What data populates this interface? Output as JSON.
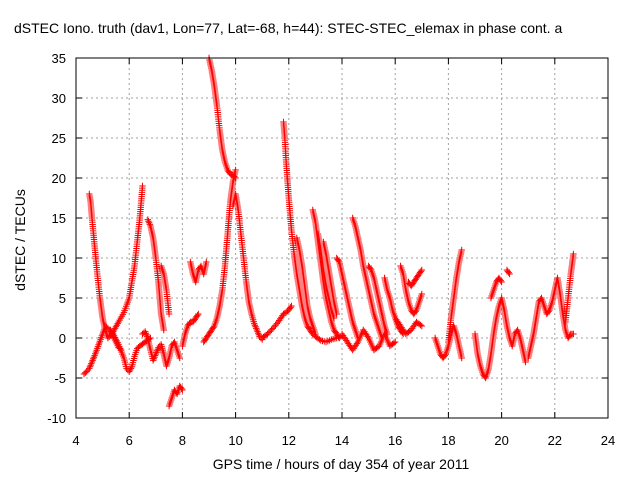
{
  "chart_data": {
    "type": "scatter",
    "title": "dSTEC Iono. truth (dav1, Lon=77, Lat=-68, h=44): STEC-STEC_elemax in phase cont. a",
    "xlabel": "GPS time / hours of day 354 of year 2011",
    "ylabel": "dSTEC  / TECUs",
    "xlim": [
      4,
      24
    ],
    "ylim": [
      -10,
      35
    ],
    "xticks": [
      4,
      6,
      8,
      10,
      12,
      14,
      16,
      18,
      20,
      22,
      24
    ],
    "yticks": [
      -10,
      -5,
      0,
      5,
      10,
      15,
      20,
      25,
      30,
      35
    ],
    "grid": true,
    "marker": "plus",
    "color": "#ff0000",
    "series": [
      {
        "x": [
          4.3,
          4.4,
          4.5,
          4.6,
          4.7,
          4.8,
          4.9,
          5.0,
          5.1,
          5.2,
          5.4,
          5.6,
          5.8,
          5.9,
          6.0,
          6.1,
          6.2,
          6.3,
          6.4,
          6.6,
          6.8
        ],
        "y": [
          -4.5,
          -4.2,
          -3.8,
          -3.0,
          -2.2,
          -1.3,
          -0.4,
          0.5,
          1.5,
          1.2,
          0.5,
          -0.8,
          -2.5,
          -3.8,
          -4.2,
          -3.6,
          -2.3,
          -1.3,
          -1.0,
          -0.5,
          0.0
        ]
      },
      {
        "x": [
          4.5,
          4.55,
          4.6,
          4.7,
          4.8,
          4.9,
          5.0,
          5.1,
          5.2,
          5.3,
          5.4,
          5.5,
          5.6,
          5.8,
          6.0,
          6.2,
          6.4,
          6.5
        ],
        "y": [
          18.0,
          17.0,
          15.0,
          11.5,
          8.0,
          5.0,
          2.5,
          1.0,
          0.0,
          0.3,
          0.8,
          1.4,
          2.0,
          3.2,
          5.0,
          9.0,
          15.0,
          19.0
        ]
      },
      {
        "x": [
          5.3,
          5.4,
          5.5,
          5.6,
          5.7
        ],
        "y": [
          1.0,
          0.2,
          -0.5,
          -1.2,
          -1.5
        ]
      },
      {
        "x": [
          6.5,
          6.6,
          6.7,
          6.8,
          6.9,
          7.0,
          7.1,
          7.2,
          7.3,
          7.4,
          7.5,
          7.6,
          7.7,
          7.8,
          7.9
        ],
        "y": [
          0.5,
          0.8,
          0.0,
          -1.5,
          -2.8,
          -2.0,
          -1.2,
          -0.8,
          -2.0,
          -3.5,
          -2.5,
          -1.0,
          -0.5,
          -1.5,
          -2.5
        ]
      },
      {
        "x": [
          6.7,
          6.8,
          6.9,
          7.0,
          7.1,
          7.15,
          7.2,
          7.3
        ],
        "y": [
          14.8,
          14.0,
          12.5,
          10.0,
          7.0,
          5.0,
          3.0,
          1.0
        ]
      },
      {
        "x": [
          7.2,
          7.3,
          7.4,
          7.5
        ],
        "y": [
          9.0,
          8.0,
          6.0,
          3.0
        ]
      },
      {
        "x": [
          7.5,
          7.6,
          7.7,
          7.8,
          7.9,
          8.0
        ],
        "y": [
          -8.5,
          -7.5,
          -6.5,
          -7.0,
          -6.0,
          -6.5
        ]
      },
      {
        "x": [
          8.0,
          8.1,
          8.2,
          8.3,
          8.4,
          8.5,
          8.6
        ],
        "y": [
          -1.0,
          0.5,
          1.5,
          2.0,
          2.0,
          2.5,
          3.0
        ]
      },
      {
        "x": [
          8.3,
          8.4,
          8.5,
          8.6,
          8.7,
          8.8,
          8.9
        ],
        "y": [
          9.5,
          8.0,
          7.0,
          8.5,
          9.0,
          8.0,
          9.5
        ]
      },
      {
        "x": [
          8.8,
          8.9,
          9.0,
          9.1,
          9.2,
          9.3,
          9.4,
          9.5,
          9.6,
          9.7,
          9.8,
          9.9,
          10.0
        ],
        "y": [
          -0.5,
          0.0,
          0.5,
          1.0,
          1.5,
          2.5,
          4.0,
          6.0,
          9.0,
          13.0,
          17.0,
          19.5,
          21.0
        ]
      },
      {
        "x": [
          9.0,
          9.1,
          9.2,
          9.3,
          9.4,
          9.5,
          9.6,
          9.7,
          9.8,
          9.9,
          10.0
        ],
        "y": [
          35.0,
          33.5,
          31.5,
          29.0,
          26.0,
          23.5,
          22.0,
          21.0,
          20.5,
          20.3,
          20.0
        ]
      },
      {
        "x": [
          9.9,
          10.0,
          10.1,
          10.2,
          10.3,
          10.4,
          10.5,
          10.6,
          10.7,
          10.8,
          10.9,
          11.0
        ],
        "y": [
          16.5,
          18.0,
          16.0,
          13.0,
          10.0,
          7.0,
          4.5,
          3.0,
          1.8,
          1.0,
          0.2,
          -0.2
        ]
      },
      {
        "x": [
          11.0,
          11.2,
          11.4,
          11.6,
          11.8,
          11.9,
          12.0,
          12.1
        ],
        "y": [
          0.0,
          0.5,
          1.2,
          2.0,
          3.0,
          3.2,
          3.5,
          4.0
        ]
      },
      {
        "x": [
          11.8,
          11.85,
          11.9,
          12.0,
          12.1,
          12.2,
          12.3,
          12.4,
          12.5,
          12.6,
          12.7,
          12.8,
          12.9,
          13.0,
          13.2,
          13.4,
          13.6,
          13.8,
          14.0
        ],
        "y": [
          27.0,
          25.0,
          22.0,
          17.5,
          13.5,
          10.5,
          8.0,
          6.0,
          4.0,
          2.5,
          1.5,
          1.0,
          0.5,
          0.2,
          -0.3,
          -0.5,
          -0.2,
          0.0,
          0.3
        ]
      },
      {
        "x": [
          12.3,
          12.4,
          12.5,
          12.6,
          12.7,
          12.8,
          12.9,
          13.0
        ],
        "y": [
          12.5,
          11.0,
          9.0,
          6.5,
          4.0,
          2.5,
          1.5,
          0.5
        ]
      },
      {
        "x": [
          12.9,
          13.0,
          13.1,
          13.2,
          13.3,
          13.4,
          13.5,
          13.6,
          13.7,
          13.8,
          13.9
        ],
        "y": [
          16.0,
          14.5,
          12.0,
          9.5,
          7.0,
          5.0,
          3.5,
          2.0,
          1.0,
          0.5,
          0.0
        ]
      },
      {
        "x": [
          13.1,
          13.2,
          13.3,
          13.4,
          13.5,
          13.6,
          13.7
        ],
        "y": [
          13.0,
          11.0,
          8.5,
          6.5,
          5.0,
          3.5,
          2.5
        ]
      },
      {
        "x": [
          13.3,
          13.4,
          13.5,
          13.6,
          13.7,
          13.8
        ],
        "y": [
          12.0,
          10.5,
          8.5,
          6.5,
          4.5,
          3.0
        ]
      },
      {
        "x": [
          13.8,
          13.9,
          14.0,
          14.1,
          14.2,
          14.3,
          14.4,
          14.5,
          14.6
        ],
        "y": [
          10.0,
          9.5,
          8.0,
          6.5,
          5.0,
          3.5,
          2.0,
          1.0,
          0.0
        ]
      },
      {
        "x": [
          14.4,
          14.5,
          14.6,
          14.7,
          14.8,
          14.9,
          15.0,
          15.1,
          15.2,
          15.3,
          15.4,
          15.5
        ],
        "y": [
          15.0,
          14.0,
          12.5,
          11.0,
          9.0,
          7.5,
          6.0,
          4.5,
          3.0,
          2.0,
          1.0,
          0.0
        ]
      },
      {
        "x": [
          14.0,
          14.2,
          14.4,
          14.6,
          14.8,
          15.0,
          15.2,
          15.4,
          15.6,
          15.8,
          16.0
        ],
        "y": [
          0.5,
          -0.5,
          -1.5,
          -0.5,
          1.0,
          0.0,
          -1.5,
          -1.0,
          0.5,
          -1.0,
          -0.5
        ]
      },
      {
        "x": [
          15.0,
          15.1,
          15.2,
          15.3,
          15.4,
          15.5,
          15.6,
          15.7
        ],
        "y": [
          9.0,
          8.5,
          7.5,
          6.0,
          4.5,
          3.0,
          1.5,
          0.5
        ]
      },
      {
        "x": [
          15.6,
          15.7,
          15.8,
          15.9,
          16.0,
          16.1,
          16.2,
          16.3
        ],
        "y": [
          7.5,
          6.0,
          5.0,
          3.5,
          2.5,
          1.5,
          1.0,
          0.5
        ]
      },
      {
        "x": [
          16.2,
          16.3,
          16.4,
          16.5,
          16.6,
          16.7,
          16.8,
          16.9,
          17.0
        ],
        "y": [
          9.0,
          8.0,
          6.0,
          4.5,
          3.5,
          3.0,
          3.5,
          4.5,
          5.5
        ]
      },
      {
        "x": [
          16.5,
          16.6,
          16.7,
          16.8,
          16.9,
          17.0
        ],
        "y": [
          7.0,
          6.5,
          7.0,
          7.5,
          8.0,
          8.5
        ]
      },
      {
        "x": [
          16.0,
          16.2,
          16.4,
          16.6,
          16.8,
          17.0
        ],
        "y": [
          2.5,
          1.5,
          0.5,
          1.0,
          2.0,
          1.5
        ]
      },
      {
        "x": [
          17.5,
          17.6,
          17.7,
          17.8,
          17.9,
          18.0,
          18.1,
          18.2,
          18.3,
          18.4,
          18.5
        ],
        "y": [
          0.0,
          -1.0,
          -2.0,
          -2.5,
          -2.0,
          -1.0,
          0.5,
          1.5,
          0.5,
          -1.0,
          -2.5
        ]
      },
      {
        "x": [
          18.0,
          18.1,
          18.2,
          18.3,
          18.4,
          18.5
        ],
        "y": [
          -0.5,
          2.5,
          5.0,
          7.5,
          9.5,
          11.0
        ]
      },
      {
        "x": [
          19.0,
          19.1,
          19.2,
          19.3,
          19.4,
          19.5,
          19.6,
          19.7,
          19.8,
          19.9,
          20.0,
          20.1,
          20.2,
          20.3,
          20.4,
          20.5,
          20.6,
          20.7,
          20.8,
          20.9
        ],
        "y": [
          0.5,
          -2.0,
          -3.5,
          -4.5,
          -5.0,
          -4.0,
          -2.0,
          0.5,
          2.5,
          4.0,
          5.0,
          3.5,
          1.5,
          0.0,
          -1.0,
          0.5,
          1.0,
          0.0,
          -1.5,
          -3.0
        ]
      },
      {
        "x": [
          19.6,
          19.7,
          19.8,
          19.9,
          20.0
        ],
        "y": [
          5.0,
          6.0,
          7.0,
          7.5,
          7.0
        ]
      },
      {
        "x": [
          20.2,
          20.3
        ],
        "y": [
          8.5,
          8.0
        ]
      },
      {
        "x": [
          21.0,
          21.1,
          21.2,
          21.3,
          21.4,
          21.5,
          21.6,
          21.7,
          21.8,
          21.9,
          22.0,
          22.1,
          22.2,
          22.3,
          22.4,
          22.5,
          22.6,
          22.7
        ],
        "y": [
          -2.5,
          -1.0,
          0.5,
          2.5,
          4.5,
          5.0,
          4.0,
          3.0,
          3.5,
          4.5,
          6.0,
          7.5,
          5.5,
          3.0,
          1.0,
          0.0,
          0.5,
          0.5
        ]
      },
      {
        "x": [
          22.4,
          22.5,
          22.6,
          22.7
        ],
        "y": [
          2.0,
          5.0,
          8.0,
          10.5
        ]
      }
    ]
  }
}
